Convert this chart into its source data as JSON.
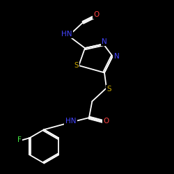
{
  "background_color": "#000000",
  "bond_color": "#ffffff",
  "atom_colors": {
    "N": "#4444ff",
    "O": "#ff4444",
    "S": "#ccaa00",
    "F": "#44ee44",
    "C": "#ffffff",
    "H": "#ffffff"
  }
}
